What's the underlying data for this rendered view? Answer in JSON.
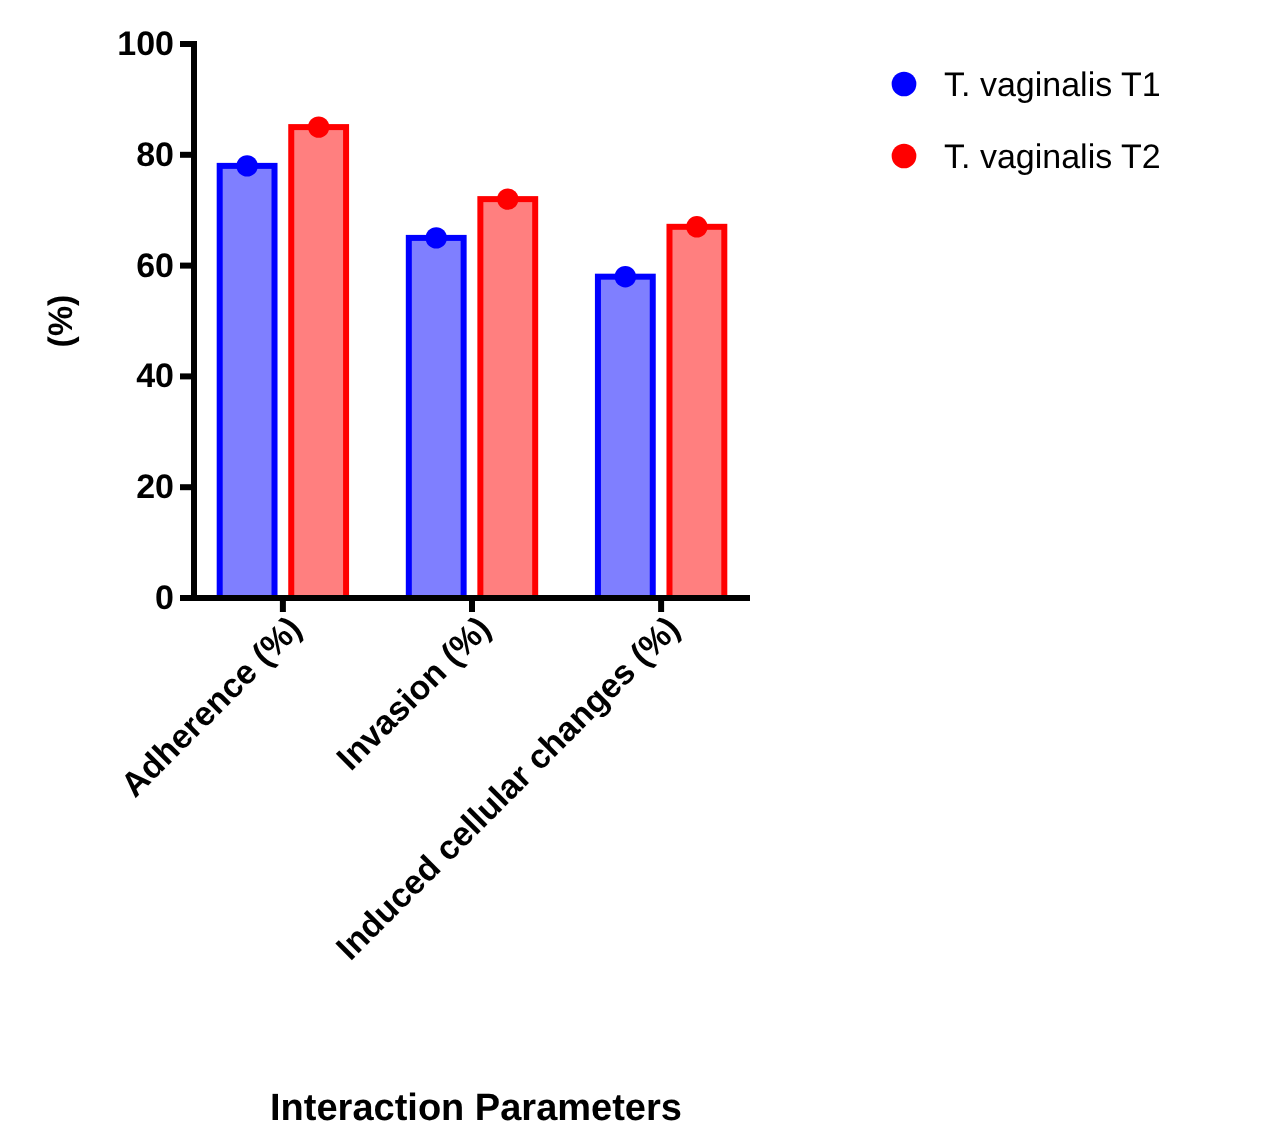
{
  "chart_data": {
    "type": "bar",
    "xlabel": "Interaction Parameters",
    "ylabel": "(%)",
    "categories": [
      "Adherence (%)",
      "Invasion (%)",
      "Induced cellular changes (%)"
    ],
    "series": [
      {
        "color": "#0000ff",
        "values": [
          78,
          65,
          58
        ]
      },
      {
        "color": "#ff0000",
        "values": [
          85,
          72,
          67
        ]
      },
      {
        "type": "scatter",
        "name": "T. vaginalis T1",
        "color": "#0000ff",
        "x": [
          "Adherence (%)",
          "Invasion (%)",
          "Induced cellular changes (%)"
        ],
        "values": [
          78,
          65,
          58
        ]
      },
      {
        "type": "scatter",
        "name": "T. vaginalis T2",
        "color": "#ff0000",
        "x": [
          "Adherence (%)",
          "Invasion (%)",
          "Induced cellular changes (%)"
        ],
        "values": [
          85,
          72,
          67
        ]
      }
    ],
    "ylim": [
      0,
      100
    ],
    "yticks": [
      0,
      20,
      40,
      60,
      80,
      100
    ],
    "grid": false,
    "legend": "top right",
    "marker": "circle"
  }
}
